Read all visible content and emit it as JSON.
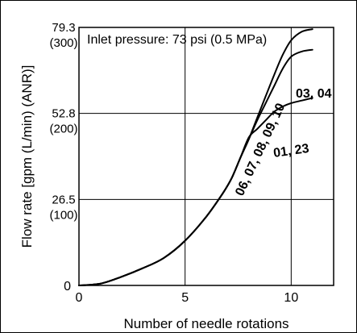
{
  "chart_data": {
    "type": "line",
    "xlabel": "Number of needle rotations",
    "ylabel": "Flow rate [gpm (L/min) (ANR)]",
    "annotation": "Inlet pressure: 73 psi (0.5 MPa)",
    "xlim": [
      0,
      12
    ],
    "ylim_lmin": [
      0,
      300
    ],
    "grid": true,
    "x_ticks": [
      {
        "value": 0,
        "label": "0"
      },
      {
        "value": 5,
        "label": "5"
      },
      {
        "value": 10,
        "label": "10"
      }
    ],
    "y_ticks": [
      {
        "value": 0,
        "label": "0",
        "sub": ""
      },
      {
        "value": 100,
        "label": "26.5",
        "sub": "(100)"
      },
      {
        "value": 200,
        "label": "52.8",
        "sub": "(200)"
      },
      {
        "value": 300,
        "label": "79.3",
        "sub": "(300)"
      }
    ],
    "series": [
      {
        "name": "01, 23",
        "x": [
          0,
          1,
          2,
          3,
          4,
          5,
          6,
          6.8,
          7.2,
          7.6,
          8,
          8.4,
          8.8,
          9.2,
          9.6,
          10,
          10.5,
          11
        ],
        "y": [
          0,
          2,
          10,
          20,
          32,
          52,
          80,
          108,
          125,
          148,
          172,
          182,
          192,
          202,
          208,
          212,
          215,
          218
        ]
      },
      {
        "name": "03, 04",
        "x": [
          0,
          1,
          2,
          3,
          4,
          5,
          6,
          6.8,
          7.2,
          7.6,
          8,
          8.4,
          8.8,
          9.2,
          9.6,
          10,
          10.5,
          11
        ],
        "y": [
          0,
          2,
          10,
          20,
          32,
          52,
          80,
          108,
          125,
          148,
          170,
          192,
          212,
          232,
          252,
          266,
          272,
          274
        ]
      },
      {
        "name": "06, 07, 08, 09, 10",
        "x": [
          0,
          1,
          2,
          3,
          4,
          5,
          6,
          6.8,
          7.2,
          7.6,
          8,
          8.4,
          8.8,
          9.2,
          9.6,
          10,
          10.5,
          11
        ],
        "y": [
          0,
          2,
          10,
          20,
          32,
          52,
          80,
          108,
          125,
          148,
          170,
          195,
          220,
          245,
          268,
          285,
          295,
          298
        ]
      }
    ]
  }
}
